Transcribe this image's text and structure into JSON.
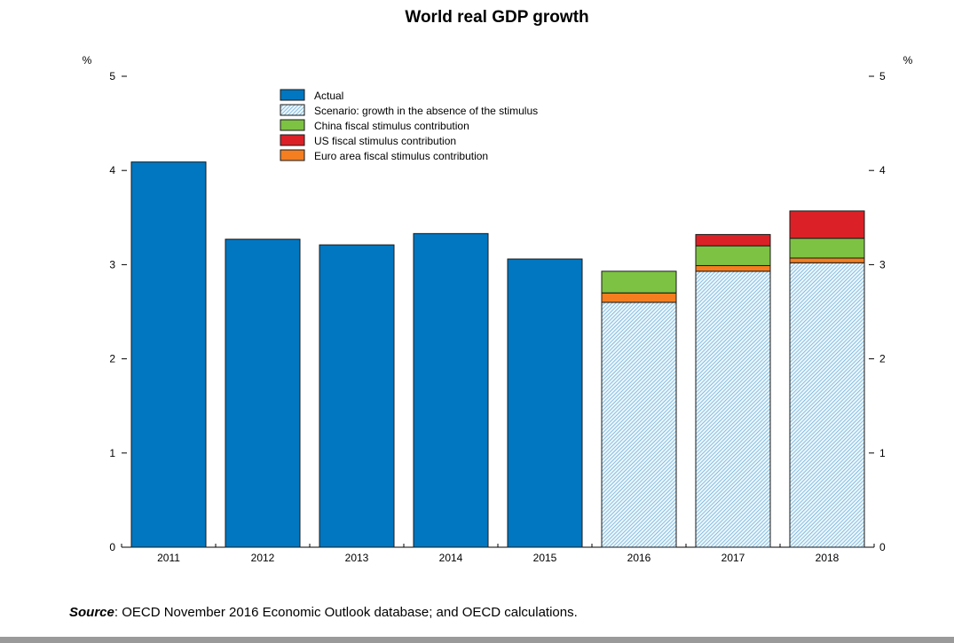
{
  "chart_data": {
    "type": "bar",
    "title": "World real GDP growth",
    "ylabel_left": "%",
    "ylabel_right": "%",
    "ylim": [
      0,
      5
    ],
    "yticks": [
      "0",
      "1",
      "2",
      "3",
      "4",
      "5"
    ],
    "categories": [
      "2011",
      "2012",
      "2013",
      "2014",
      "2015",
      "2016",
      "2017",
      "2018"
    ],
    "stacked": true,
    "grid": false,
    "legend_position": "top-left",
    "series": [
      {
        "name": "Actual",
        "color": "#0077C0",
        "pattern": "solid",
        "values": [
          4.09,
          3.27,
          3.21,
          3.33,
          3.06,
          null,
          null,
          null
        ]
      },
      {
        "name": "Scenario: growth in the absence of the stimulus",
        "color": "#5aaad8",
        "pattern": "hatch",
        "values": [
          null,
          null,
          null,
          null,
          null,
          2.6,
          2.93,
          3.02
        ]
      },
      {
        "name": "Euro area fiscal stimulus contribution",
        "color": "#F47E20",
        "pattern": "solid",
        "values": [
          null,
          null,
          null,
          null,
          null,
          0.1,
          0.06,
          0.05
        ]
      },
      {
        "name": "China fiscal stimulus contribution",
        "color": "#7DC242",
        "pattern": "solid",
        "values": [
          null,
          null,
          null,
          null,
          null,
          0.23,
          0.21,
          0.21
        ]
      },
      {
        "name": "US fiscal stimulus contribution",
        "color": "#DB2127",
        "pattern": "solid",
        "values": [
          null,
          null,
          null,
          null,
          null,
          0.0,
          0.12,
          0.29
        ]
      }
    ],
    "legend_order": [
      "Actual",
      "Scenario: growth in the absence of the stimulus",
      "China fiscal stimulus contribution",
      "US fiscal stimulus contribution",
      "Euro area fiscal stimulus contribution"
    ]
  },
  "source": {
    "label": "Source",
    "text": ": OECD November 2016 Economic Outlook database; and OECD calculations."
  }
}
